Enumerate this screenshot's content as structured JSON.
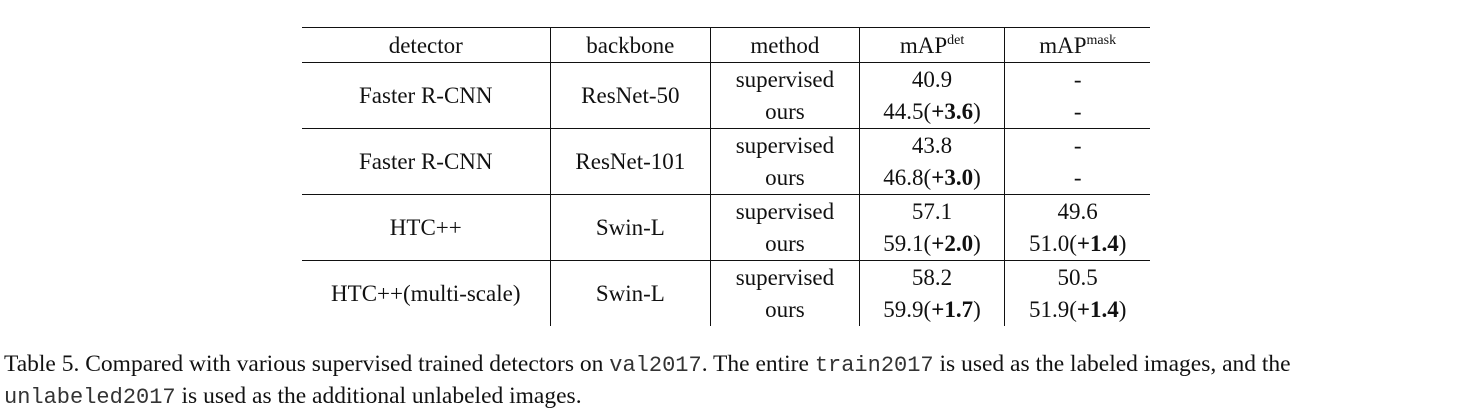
{
  "table": {
    "headers": {
      "detector": "detector",
      "backbone": "backbone",
      "method": "method",
      "map_det_base": "mAP",
      "map_det_sup": "det",
      "map_mask_base": "mAP",
      "map_mask_sup": "mask"
    },
    "groups": [
      {
        "detector": "Faster R-CNN",
        "backbone": "ResNet-50",
        "rows": [
          {
            "method": "supervised",
            "det_value": "40.9",
            "det_gain": "",
            "mask_value": "-",
            "mask_gain": ""
          },
          {
            "method": "ours",
            "det_value": "44.5",
            "det_gain": "+3.6",
            "mask_value": "-",
            "mask_gain": ""
          }
        ]
      },
      {
        "detector": "Faster R-CNN",
        "backbone": "ResNet-101",
        "rows": [
          {
            "method": "supervised",
            "det_value": "43.8",
            "det_gain": "",
            "mask_value": "-",
            "mask_gain": ""
          },
          {
            "method": "ours",
            "det_value": "46.8",
            "det_gain": "+3.0",
            "mask_value": "-",
            "mask_gain": ""
          }
        ]
      },
      {
        "detector": "HTC++",
        "backbone": "Swin-L",
        "rows": [
          {
            "method": "supervised",
            "det_value": "57.1",
            "det_gain": "",
            "mask_value": "49.6",
            "mask_gain": ""
          },
          {
            "method": "ours",
            "det_value": "59.1",
            "det_gain": "+2.0",
            "mask_value": "51.0",
            "mask_gain": "+1.4"
          }
        ]
      },
      {
        "detector": "HTC++(multi-scale)",
        "backbone": "Swin-L",
        "rows": [
          {
            "method": "supervised",
            "det_value": "58.2",
            "det_gain": "",
            "mask_value": "50.5",
            "mask_gain": ""
          },
          {
            "method": "ours",
            "det_value": "59.9",
            "det_gain": "+1.7",
            "mask_value": "51.9",
            "mask_gain": "+1.4"
          }
        ]
      }
    ]
  },
  "caption": {
    "label": "Table 5.",
    "text_1": " Compared with various supervised trained detectors on ",
    "code_1": "val2017",
    "text_2": ". The entire ",
    "code_2": "train2017",
    "text_3": " is used as the labeled images, and the ",
    "code_3": "unlabeled2017",
    "text_4": " is used as the additional unlabeled images."
  }
}
